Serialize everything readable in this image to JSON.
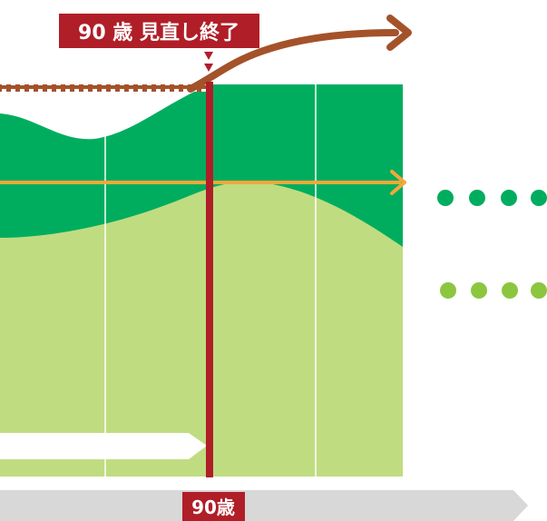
{
  "review_end_label": "90 歳 見直し終了",
  "age_axis_label": "90歳",
  "colors": {
    "background": "#ffffff",
    "dark_green": "#00ad5f",
    "light_green": "#c0dc80",
    "brown": "#a4522a",
    "orange": "#f3a83b",
    "red": "#b01e28",
    "gray_arrow": "#d8d8d8",
    "dot_dark": "#00ad5f",
    "dot_light": "#8cc63f",
    "white": "#ffffff"
  }
}
